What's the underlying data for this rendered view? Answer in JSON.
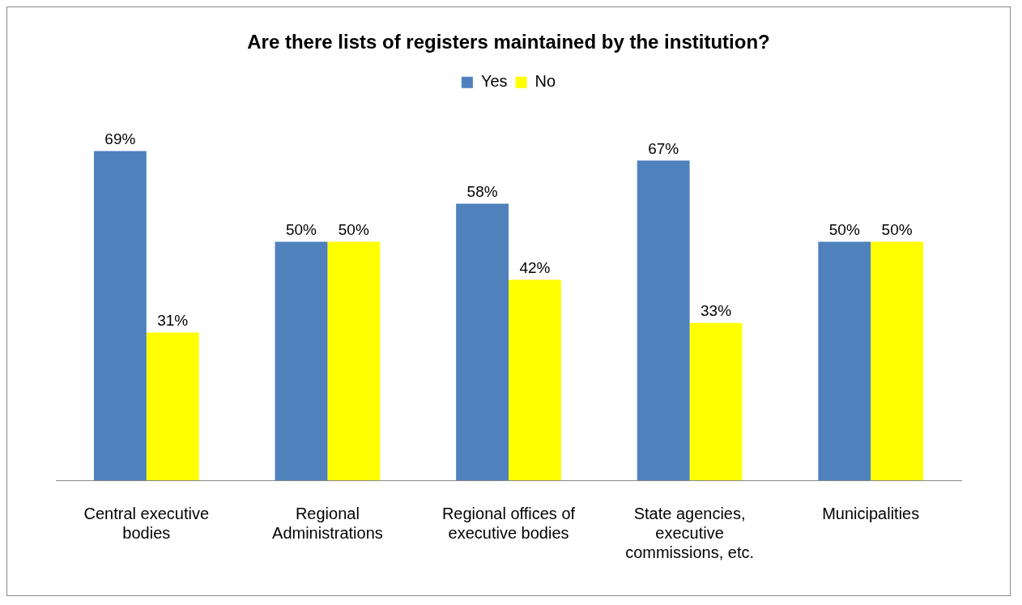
{
  "chart_data": {
    "type": "bar",
    "title": "Are there lists of registers maintained by the institution?",
    "categories": [
      "Central executive bodies",
      "Regional Administrations",
      "Regional offices of executive bodies",
      "State agencies, executive commissions, etc.",
      "Municipalities"
    ],
    "series": [
      {
        "name": "Yes",
        "color": "#4f81bd",
        "values": [
          69,
          50,
          58,
          67,
          50
        ],
        "value_labels": [
          "69%",
          "50%",
          "58%",
          "67%",
          "50%"
        ]
      },
      {
        "name": "No",
        "color": "#ffff00",
        "values": [
          31,
          50,
          42,
          33,
          50
        ],
        "value_labels": [
          "31%",
          "50%",
          "42%",
          "33%",
          "50%"
        ]
      }
    ],
    "legend": "top",
    "grid": false
  }
}
